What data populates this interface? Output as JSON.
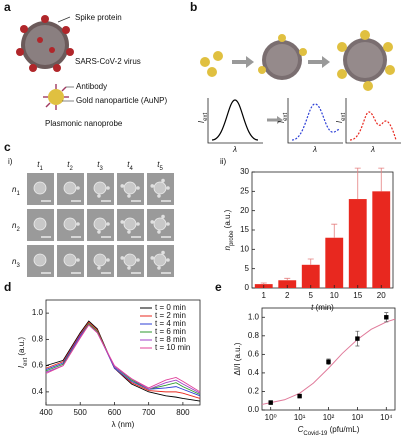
{
  "panel_labels": [
    "a",
    "b",
    "c",
    "d",
    "e"
  ],
  "panel_a": {
    "spike_label": "Spike protein",
    "virus_label": "SARS-CoV-2 virus",
    "antibody_label": "Antibody",
    "aunp_label": "Gold nanoparticle (AuNP)",
    "probe_label": "Plasmonic nanoprobe"
  },
  "panel_b": {
    "y_label": {
      "main": "I",
      "sub": "ext"
    },
    "x_label": "λ"
  },
  "panel_c": {
    "sub_labels": [
      "i)",
      "ii)"
    ],
    "times": [
      {
        "main": "t",
        "sub": "1"
      },
      {
        "main": "t",
        "sub": "2"
      },
      {
        "main": "t",
        "sub": "3"
      },
      {
        "main": "t",
        "sub": "4"
      },
      {
        "main": "t",
        "sub": "5"
      }
    ],
    "rows": [
      {
        "main": "n",
        "sub": "1"
      },
      {
        "main": "n",
        "sub": "2"
      },
      {
        "main": "n",
        "sub": "3"
      }
    ]
  },
  "chart_data": [
    {
      "type": "bar",
      "categories": [
        "1",
        "2",
        "5",
        "10",
        "15",
        "20"
      ],
      "values": [
        1,
        2,
        6,
        13,
        23,
        25
      ],
      "errors": [
        0.3,
        0.5,
        1.5,
        3.5,
        8,
        6
      ],
      "color": "#e8281f",
      "ylim": [
        0,
        30
      ],
      "yticks": [
        0,
        5,
        10,
        15,
        20,
        25,
        30
      ],
      "x_label": {
        "main": "t",
        "rest": " (min)"
      },
      "y_label": {
        "main": "n",
        "sub": "probe",
        "rest": " (a.u.)"
      }
    },
    {
      "type": "line",
      "x": [
        400,
        450,
        500,
        525,
        550,
        600,
        650,
        700,
        750,
        780,
        800,
        850
      ],
      "series": [
        {
          "name": "t = 0 min",
          "color": "#000000",
          "values": [
            0.6,
            0.64,
            0.85,
            0.94,
            0.88,
            0.58,
            0.46,
            0.4,
            0.37,
            0.36,
            0.35,
            0.33
          ]
        },
        {
          "name": "t = 2 min",
          "color": "#e8281f",
          "values": [
            0.58,
            0.63,
            0.84,
            0.93,
            0.87,
            0.58,
            0.47,
            0.41,
            0.4,
            0.4,
            0.39,
            0.35
          ]
        },
        {
          "name": "t = 4 min",
          "color": "#2c3fd6",
          "values": [
            0.57,
            0.62,
            0.83,
            0.92,
            0.86,
            0.58,
            0.48,
            0.42,
            0.43,
            0.44,
            0.42,
            0.37
          ]
        },
        {
          "name": "t = 6 min",
          "color": "#2e9a2e",
          "values": [
            0.56,
            0.61,
            0.82,
            0.92,
            0.86,
            0.59,
            0.49,
            0.42,
            0.45,
            0.47,
            0.44,
            0.38
          ]
        },
        {
          "name": "t = 8 min",
          "color": "#a040c8",
          "values": [
            0.55,
            0.6,
            0.82,
            0.91,
            0.85,
            0.59,
            0.5,
            0.42,
            0.47,
            0.49,
            0.46,
            0.39
          ]
        },
        {
          "name": "t = 10 min",
          "color": "#e0409a",
          "values": [
            0.54,
            0.6,
            0.81,
            0.91,
            0.85,
            0.6,
            0.5,
            0.43,
            0.49,
            0.51,
            0.48,
            0.4
          ]
        }
      ],
      "xlim": [
        400,
        850
      ],
      "xticks": [
        400,
        500,
        600,
        700,
        800
      ],
      "ylim": [
        0.3,
        1.1
      ],
      "yticks": [
        0.4,
        0.6,
        0.8,
        {
          "value": 1,
          "label": "1.0"
        }
      ],
      "x_label": "λ (nm)",
      "y_label": {
        "main": "I",
        "sub": "ext",
        "rest": " (a.u.)"
      }
    },
    {
      "type": "scatter",
      "log_x": true,
      "x": [
        1,
        10,
        100,
        1000,
        10000
      ],
      "values": [
        0.08,
        0.15,
        0.52,
        0.77,
        1.0
      ],
      "errors": [
        0.02,
        0.02,
        0.03,
        0.08,
        0.05
      ],
      "color": "#000000",
      "fit": {
        "color": "#e07a9a",
        "x": [
          0.5,
          1,
          3,
          10,
          30,
          100,
          300,
          1000,
          3000,
          10000,
          20000
        ],
        "values": [
          0.06,
          0.08,
          0.11,
          0.18,
          0.29,
          0.45,
          0.61,
          0.76,
          0.87,
          0.95,
          0.98
        ]
      },
      "xlim": [
        0.5,
        20000
      ],
      "xticks": [
        {
          "value": 1,
          "label": "10⁰"
        },
        {
          "value": 10,
          "label": "10¹"
        },
        {
          "value": 100,
          "label": "10²"
        },
        {
          "value": 1000,
          "label": "10³"
        },
        {
          "value": 10000,
          "label": "10⁴"
        }
      ],
      "ylim": [
        0,
        1.1
      ],
      "yticks": [
        {
          "value": 0,
          "label": "0.0"
        },
        0.2,
        0.4,
        0.6,
        0.8,
        {
          "value": 1,
          "label": "1.0"
        }
      ],
      "x_label": {
        "main": "C",
        "sub": "Covid-19",
        "rest": " (pfu/mL)"
      },
      "y_label": "ΔI/I (a.u.)"
    }
  ]
}
